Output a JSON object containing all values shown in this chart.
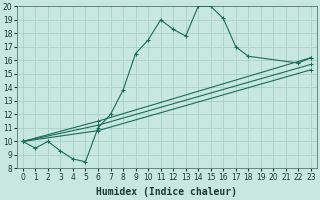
{
  "xlabel": "Humidex (Indice chaleur)",
  "bg_color": "#c8e8df",
  "line_color": "#1a6b5a",
  "grid_color": "#aacfc7",
  "xlim": [
    -0.5,
    23.5
  ],
  "ylim": [
    8,
    20
  ],
  "xticks": [
    0,
    1,
    2,
    3,
    4,
    5,
    6,
    7,
    8,
    9,
    10,
    11,
    12,
    13,
    14,
    15,
    16,
    17,
    18,
    19,
    20,
    21,
    22,
    23
  ],
  "yticks": [
    8,
    9,
    10,
    11,
    12,
    13,
    14,
    15,
    16,
    17,
    18,
    19,
    20
  ],
  "line_main": {
    "x": [
      0,
      1,
      2,
      3,
      4,
      5,
      6,
      7,
      8,
      9,
      10,
      11,
      12,
      13,
      14,
      15,
      16,
      17,
      18,
      22,
      23
    ],
    "y": [
      10,
      9.5,
      10,
      9.3,
      8.7,
      8.5,
      11,
      12,
      13.8,
      16.5,
      17.5,
      19,
      18.3,
      17.8,
      20,
      20,
      19.1,
      17,
      16.3,
      15.8,
      16.2
    ]
  },
  "line_straight_1": {
    "x": [
      0,
      6,
      23
    ],
    "y": [
      10,
      11.5,
      16.2
    ]
  },
  "line_straight_2": {
    "x": [
      0,
      6,
      23
    ],
    "y": [
      10,
      11.2,
      15.7
    ]
  },
  "line_straight_3": {
    "x": [
      0,
      6,
      23
    ],
    "y": [
      10,
      10.8,
      15.3
    ]
  },
  "xlabel_fontsize": 7,
  "tick_fontsize": 5.5
}
